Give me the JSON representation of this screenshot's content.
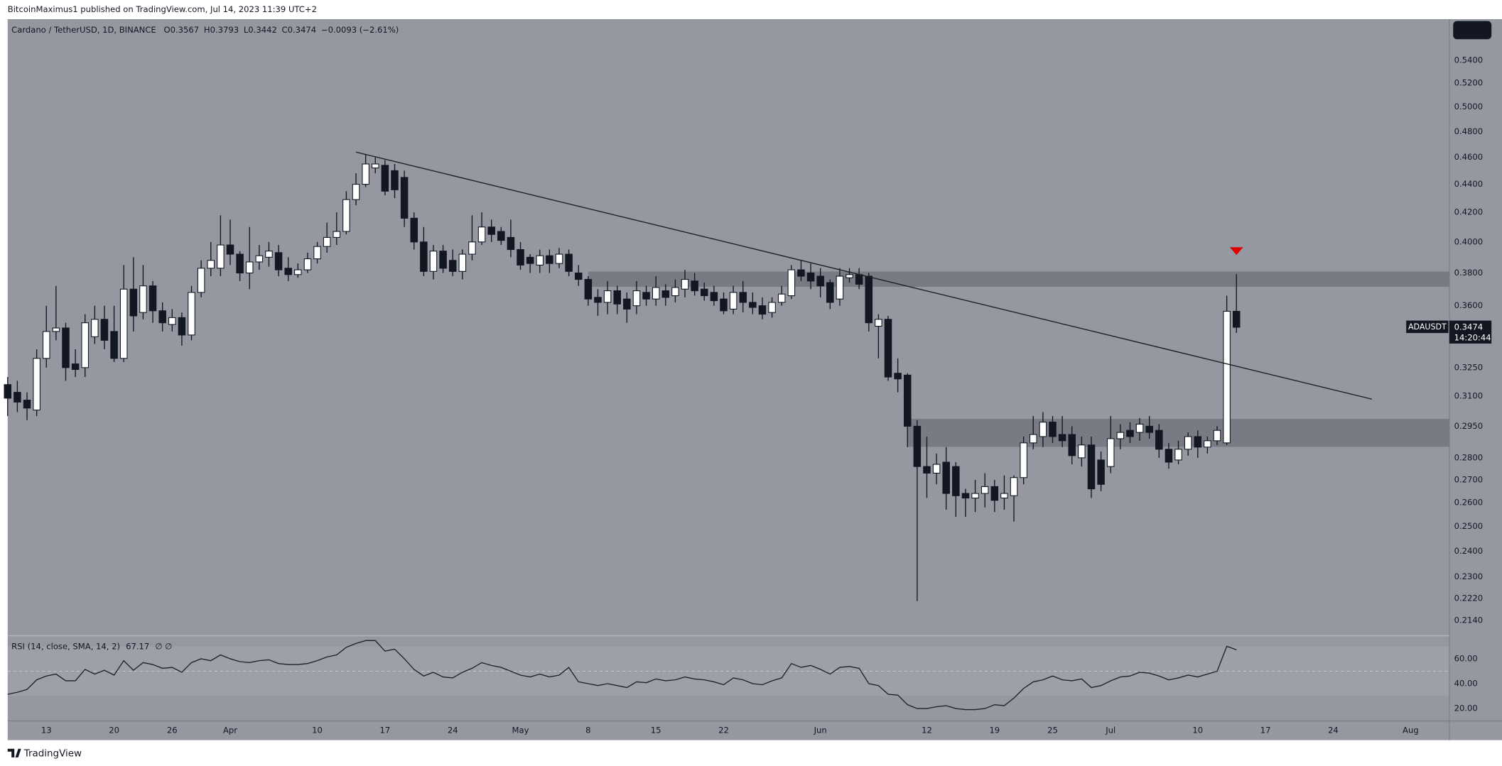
{
  "header": {
    "published": "BitcoinMaximus1 published on TradingView.com, Jul 14, 2023 11:39 UTC+2"
  },
  "footer": {
    "logo": "TradingView"
  },
  "chart_data": [
    {
      "type": "candlestick",
      "title": "Cardano / TetherUSD, 1D, BINANCE",
      "ohlc_labels": [
        "O",
        "H",
        "L",
        "C"
      ],
      "change": "−0.0093 (−2.61%)",
      "symbol": "ADAUSDT",
      "countdown": "14:20:44",
      "log": true,
      "grid": false,
      "up_color": "#ffffff",
      "down_color": "#131722",
      "wick_color": "#131722",
      "x": [
        "Mar 9",
        "Mar 10",
        "Mar 11",
        "Mar 12",
        "Mar 13",
        "Mar 14",
        "Mar 15",
        "Mar 16",
        "Mar 17",
        "Mar 18",
        "Mar 19",
        "Mar 20",
        "Mar 21",
        "Mar 22",
        "Mar 23",
        "Mar 24",
        "Mar 25",
        "Mar 26",
        "Mar 27",
        "Mar 28",
        "Mar 29",
        "Mar 30",
        "Mar 31",
        "Apr 1",
        "Apr 2",
        "Apr 3",
        "Apr 4",
        "Apr 5",
        "Apr 6",
        "Apr 7",
        "Apr 8",
        "Apr 9",
        "Apr 10",
        "Apr 11",
        "Apr 12",
        "Apr 13",
        "Apr 14",
        "Apr 15",
        "Apr 16",
        "Apr 17",
        "Apr 18",
        "Apr 19",
        "Apr 20",
        "Apr 21",
        "Apr 22",
        "Apr 23",
        "Apr 24",
        "Apr 25",
        "Apr 26",
        "Apr 27",
        "Apr 28",
        "Apr 29",
        "Apr 30",
        "May 1",
        "May 2",
        "May 3",
        "May 4",
        "May 5",
        "May 6",
        "May 7",
        "May 8",
        "May 9",
        "May 10",
        "May 11",
        "May 12",
        "May 13",
        "May 14",
        "May 15",
        "May 16",
        "May 17",
        "May 18",
        "May 19",
        "May 20",
        "May 21",
        "May 22",
        "May 23",
        "May 24",
        "May 25",
        "May 26",
        "May 27",
        "May 28",
        "May 29",
        "May 30",
        "May 31",
        "Jun 1",
        "Jun 2",
        "Jun 3",
        "Jun 4",
        "Jun 5",
        "Jun 6",
        "Jun 7",
        "Jun 8",
        "Jun 9",
        "Jun 10",
        "Jun 11",
        "Jun 12",
        "Jun 13",
        "Jun 14",
        "Jun 15",
        "Jun 16",
        "Jun 17",
        "Jun 18",
        "Jun 19",
        "Jun 20",
        "Jun 21",
        "Jun 22",
        "Jun 23",
        "Jun 24",
        "Jun 25",
        "Jun 26",
        "Jun 27",
        "Jun 28",
        "Jun 29",
        "Jun 30",
        "Jul 1",
        "Jul 2",
        "Jul 3",
        "Jul 4",
        "Jul 5",
        "Jul 6",
        "Jul 7",
        "Jul 8",
        "Jul 9",
        "Jul 10",
        "Jul 11",
        "Jul 12",
        "Jul 13",
        "Jul 14"
      ],
      "open": [
        0.316,
        0.312,
        0.308,
        0.303,
        0.33,
        0.345,
        0.347,
        0.327,
        0.325,
        0.342,
        0.352,
        0.345,
        0.33,
        0.37,
        0.356,
        0.372,
        0.357,
        0.349,
        0.353,
        0.343,
        0.368,
        0.383,
        0.383,
        0.398,
        0.392,
        0.38,
        0.387,
        0.39,
        0.393,
        0.383,
        0.379,
        0.382,
        0.389,
        0.397,
        0.403,
        0.407,
        0.429,
        0.44,
        0.452,
        0.454,
        0.45,
        0.445,
        0.416,
        0.4,
        0.381,
        0.394,
        0.388,
        0.381,
        0.392,
        0.4,
        0.41,
        0.407,
        0.403,
        0.395,
        0.39,
        0.385,
        0.391,
        0.386,
        0.392,
        0.38,
        0.376,
        0.365,
        0.362,
        0.369,
        0.364,
        0.36,
        0.368,
        0.364,
        0.369,
        0.366,
        0.37,
        0.375,
        0.37,
        0.368,
        0.364,
        0.358,
        0.368,
        0.362,
        0.36,
        0.356,
        0.362,
        0.366,
        0.382,
        0.38,
        0.378,
        0.374,
        0.364,
        0.377,
        0.379,
        0.378,
        0.348,
        0.352,
        0.322,
        0.321,
        0.295,
        0.276,
        0.273,
        0.278,
        0.276,
        0.264,
        0.262,
        0.264,
        0.267,
        0.262,
        0.263,
        0.271,
        0.287,
        0.29,
        0.297,
        0.291,
        0.291,
        0.28,
        0.286,
        0.279,
        0.276,
        0.289,
        0.293,
        0.292,
        0.295,
        0.293,
        0.284,
        0.279,
        0.284,
        0.29,
        0.285,
        0.288,
        0.287,
        0.3567
      ],
      "high": [
        0.32,
        0.318,
        0.312,
        0.335,
        0.36,
        0.372,
        0.35,
        0.335,
        0.355,
        0.36,
        0.36,
        0.36,
        0.385,
        0.39,
        0.385,
        0.375,
        0.362,
        0.358,
        0.356,
        0.372,
        0.388,
        0.4,
        0.418,
        0.415,
        0.394,
        0.41,
        0.398,
        0.4,
        0.398,
        0.39,
        0.386,
        0.393,
        0.4,
        0.413,
        0.42,
        0.435,
        0.448,
        0.462,
        0.46,
        0.458,
        0.455,
        0.45,
        0.42,
        0.41,
        0.398,
        0.398,
        0.395,
        0.395,
        0.418,
        0.42,
        0.415,
        0.41,
        0.415,
        0.4,
        0.392,
        0.395,
        0.395,
        0.396,
        0.395,
        0.385,
        0.378,
        0.37,
        0.375,
        0.372,
        0.368,
        0.375,
        0.372,
        0.378,
        0.373,
        0.376,
        0.382,
        0.38,
        0.374,
        0.372,
        0.368,
        0.372,
        0.375,
        0.368,
        0.365,
        0.365,
        0.372,
        0.385,
        0.388,
        0.386,
        0.383,
        0.376,
        0.383,
        0.383,
        0.383,
        0.38,
        0.355,
        0.354,
        0.33,
        0.322,
        0.298,
        0.29,
        0.282,
        0.285,
        0.278,
        0.266,
        0.27,
        0.273,
        0.27,
        0.272,
        0.272,
        0.29,
        0.3,
        0.302,
        0.3,
        0.3,
        0.295,
        0.29,
        0.29,
        0.283,
        0.3,
        0.296,
        0.297,
        0.299,
        0.3,
        0.296,
        0.287,
        0.288,
        0.292,
        0.293,
        0.29,
        0.295,
        0.366,
        0.3793
      ],
      "low": [
        0.3,
        0.302,
        0.298,
        0.3,
        0.325,
        0.34,
        0.318,
        0.32,
        0.32,
        0.338,
        0.335,
        0.328,
        0.328,
        0.345,
        0.352,
        0.35,
        0.345,
        0.345,
        0.337,
        0.34,
        0.365,
        0.378,
        0.378,
        0.385,
        0.375,
        0.37,
        0.382,
        0.384,
        0.378,
        0.375,
        0.377,
        0.38,
        0.386,
        0.393,
        0.398,
        0.405,
        0.425,
        0.438,
        0.448,
        0.432,
        0.43,
        0.41,
        0.395,
        0.378,
        0.376,
        0.38,
        0.378,
        0.376,
        0.388,
        0.398,
        0.4,
        0.398,
        0.39,
        0.382,
        0.38,
        0.38,
        0.38,
        0.383,
        0.378,
        0.372,
        0.36,
        0.354,
        0.355,
        0.355,
        0.35,
        0.355,
        0.36,
        0.36,
        0.36,
        0.362,
        0.365,
        0.366,
        0.363,
        0.36,
        0.355,
        0.355,
        0.356,
        0.355,
        0.352,
        0.353,
        0.36,
        0.364,
        0.375,
        0.37,
        0.365,
        0.358,
        0.36,
        0.374,
        0.37,
        0.345,
        0.33,
        0.318,
        0.312,
        0.285,
        0.221,
        0.262,
        0.268,
        0.257,
        0.254,
        0.254,
        0.256,
        0.258,
        0.256,
        0.257,
        0.252,
        0.268,
        0.284,
        0.285,
        0.287,
        0.285,
        0.277,
        0.276,
        0.262,
        0.265,
        0.273,
        0.284,
        0.287,
        0.288,
        0.289,
        0.28,
        0.275,
        0.277,
        0.281,
        0.28,
        0.282,
        0.286,
        0.286,
        0.3442
      ],
      "close": [
        0.309,
        0.307,
        0.304,
        0.33,
        0.345,
        0.347,
        0.325,
        0.324,
        0.35,
        0.352,
        0.34,
        0.33,
        0.37,
        0.354,
        0.372,
        0.357,
        0.35,
        0.353,
        0.343,
        0.368,
        0.383,
        0.388,
        0.398,
        0.392,
        0.38,
        0.387,
        0.391,
        0.394,
        0.382,
        0.379,
        0.382,
        0.389,
        0.397,
        0.403,
        0.407,
        0.429,
        0.44,
        0.455,
        0.455,
        0.435,
        0.436,
        0.416,
        0.4,
        0.381,
        0.394,
        0.383,
        0.381,
        0.392,
        0.4,
        0.41,
        0.405,
        0.401,
        0.395,
        0.385,
        0.386,
        0.391,
        0.386,
        0.392,
        0.381,
        0.376,
        0.364,
        0.362,
        0.369,
        0.361,
        0.358,
        0.369,
        0.364,
        0.371,
        0.365,
        0.371,
        0.376,
        0.369,
        0.366,
        0.363,
        0.357,
        0.368,
        0.362,
        0.359,
        0.355,
        0.362,
        0.367,
        0.382,
        0.378,
        0.375,
        0.372,
        0.362,
        0.378,
        0.379,
        0.373,
        0.35,
        0.352,
        0.32,
        0.319,
        0.295,
        0.276,
        0.273,
        0.277,
        0.264,
        0.263,
        0.262,
        0.264,
        0.267,
        0.261,
        0.264,
        0.271,
        0.287,
        0.291,
        0.297,
        0.29,
        0.288,
        0.281,
        0.286,
        0.266,
        0.268,
        0.289,
        0.292,
        0.29,
        0.296,
        0.292,
        0.284,
        0.278,
        0.284,
        0.29,
        0.285,
        0.288,
        0.293,
        0.3567,
        0.3474
      ],
      "xlim": [
        "Mar 9",
        "Aug 5"
      ],
      "xticks": [
        {
          "value": "Mar 13",
          "label": "13"
        },
        {
          "value": "Mar 20",
          "label": "20"
        },
        {
          "value": "Mar 26",
          "label": "26"
        },
        {
          "value": "Apr 1",
          "label": "Apr"
        },
        {
          "value": "Apr 10",
          "label": "10"
        },
        {
          "value": "Apr 17",
          "label": "17"
        },
        {
          "value": "Apr 24",
          "label": "24"
        },
        {
          "value": "May 1",
          "label": "May"
        },
        {
          "value": "May 8",
          "label": "8"
        },
        {
          "value": "May 15",
          "label": "15"
        },
        {
          "value": "May 22",
          "label": "22"
        },
        {
          "value": "Jun 1",
          "label": "Jun"
        },
        {
          "value": "Jun 12",
          "label": "12"
        },
        {
          "value": "Jun 19",
          "label": "19"
        },
        {
          "value": "Jun 25",
          "label": "25"
        },
        {
          "value": "Jul 1",
          "label": "Jul"
        },
        {
          "value": "Jul 10",
          "label": "10"
        },
        {
          "value": "Jul 17",
          "label": "17"
        },
        {
          "value": "Jul 24",
          "label": "24"
        },
        {
          "value": "Aug 1",
          "label": "Aug"
        }
      ],
      "ylim": [
        0.209,
        0.578
      ],
      "yticks": [
        {
          "value": 0.214,
          "label": "0.2140"
        },
        {
          "value": 0.222,
          "label": "0.2220"
        },
        {
          "value": 0.23,
          "label": "0.2300"
        },
        {
          "value": 0.24,
          "label": "0.2400"
        },
        {
          "value": 0.25,
          "label": "0.2500"
        },
        {
          "value": 0.26,
          "label": "0.2600"
        },
        {
          "value": 0.27,
          "label": "0.2700"
        },
        {
          "value": 0.28,
          "label": "0.2800"
        },
        {
          "value": 0.295,
          "label": "0.2950"
        },
        {
          "value": 0.31,
          "label": "0.3100"
        },
        {
          "value": 0.325,
          "label": "0.3250"
        },
        {
          "value": 0.36,
          "label": "0.3600"
        },
        {
          "value": 0.38,
          "label": "0.3800"
        },
        {
          "value": 0.4,
          "label": "0.4000"
        },
        {
          "value": 0.42,
          "label": "0.4200"
        },
        {
          "value": 0.44,
          "label": "0.4400"
        },
        {
          "value": 0.46,
          "label": "0.4600"
        },
        {
          "value": 0.48,
          "label": "0.4800"
        },
        {
          "value": 0.5,
          "label": "0.5000"
        },
        {
          "value": 0.52,
          "label": "0.5200"
        },
        {
          "value": 0.54,
          "label": "0.5400"
        }
      ],
      "trendline": {
        "x": [
          "Apr 14",
          "Jul 28"
        ],
        "y": [
          0.464,
          0.3085
        ],
        "color": "#1e1e1e"
      },
      "zones": [
        {
          "x0": "May 8",
          "y": [
            0.3714,
            0.3809
          ]
        },
        {
          "x0": "Jun 10",
          "y": [
            0.2851,
            0.2986
          ]
        }
      ],
      "zone_color": "#6f727b",
      "marker": {
        "x": "Jul 14",
        "y": 0.394,
        "color": "#e00000"
      }
    },
    {
      "type": "line",
      "title": "RSI (14, close, SMA, 14, 2)",
      "extra_values": "∅ ∅",
      "color": "#1f2128",
      "values": [
        31.5,
        33.1,
        35.4,
        43.1,
        46.2,
        47.7,
        42.3,
        42.3,
        51.5,
        47.7,
        50.8,
        46.9,
        58.5,
        50.8,
        56.9,
        55.4,
        52.3,
        53.1,
        49.2,
        56.9,
        60,
        58.5,
        63.1,
        60,
        57.7,
        56.9,
        58.5,
        59.2,
        56.2,
        55.4,
        55.4,
        56.2,
        58.5,
        61.5,
        63.1,
        69.2,
        72.3,
        74.6,
        74.6,
        66.2,
        67.7,
        60,
        51.5,
        46.2,
        49.2,
        45.4,
        44.6,
        49.2,
        52.3,
        56.9,
        54.6,
        53.1,
        50,
        46.9,
        45.4,
        47.7,
        45.4,
        46.9,
        53.1,
        41.5,
        40,
        38.5,
        40,
        38.5,
        36.9,
        41.5,
        40.8,
        43.8,
        42.3,
        43.1,
        45.4,
        43.8,
        43.1,
        41.5,
        39.2,
        44.6,
        43.1,
        40,
        39.2,
        42.3,
        44.6,
        56.2,
        53.1,
        54.6,
        51.5,
        47.7,
        53.1,
        53.8,
        52.3,
        40,
        38.5,
        31.5,
        30.8,
        23.1,
        20,
        20,
        21.5,
        22.3,
        20,
        19.2,
        19.2,
        20,
        23.1,
        22.3,
        28.5,
        36.2,
        41.5,
        43.1,
        46.2,
        43.1,
        42.3,
        43.8,
        36.9,
        38.5,
        42.3,
        45.4,
        46.2,
        49.2,
        48.5,
        46.2,
        43.1,
        44.6,
        46.9,
        45.4,
        47.7,
        50,
        70,
        67.17
      ],
      "ylim": [
        10.8,
        77.7
      ],
      "yticks": [
        {
          "value": 60,
          "label": "60.00"
        },
        {
          "value": 40,
          "label": "40.00"
        },
        {
          "value": 20,
          "label": "20.00"
        }
      ],
      "band": [
        30,
        70
      ],
      "midline": 50
    }
  ]
}
